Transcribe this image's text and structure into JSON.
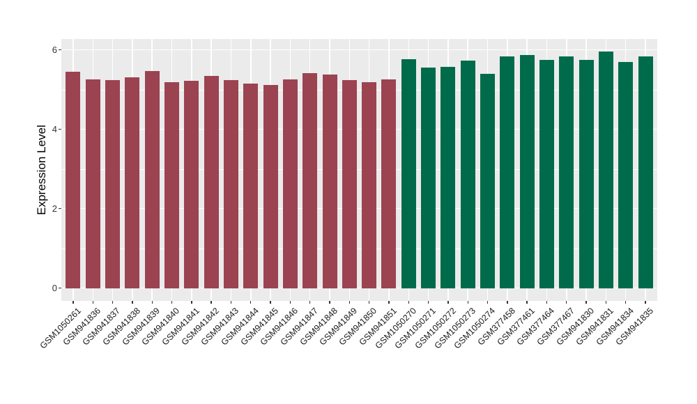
{
  "chart_data": {
    "type": "bar",
    "title": "",
    "xlabel": "",
    "ylabel": "Expression Level",
    "ylim": [
      0,
      6.3
    ],
    "yticks": [
      0,
      2,
      4,
      6
    ],
    "yticks_minor": [
      1,
      3,
      5
    ],
    "grid": true,
    "legend_position": "none",
    "panel_background": "#EBEBEB",
    "gridline_color": "#FFFFFF",
    "group_colors": {
      "maroon": "#9B4351",
      "green": "#006B4A"
    },
    "categories": [
      "GSM1050261",
      "GSM941836",
      "GSM941837",
      "GSM941838",
      "GSM941839",
      "GSM941840",
      "GSM941841",
      "GSM941842",
      "GSM941843",
      "GSM941844",
      "GSM941845",
      "GSM941846",
      "GSM941847",
      "GSM941848",
      "GSM941849",
      "GSM941850",
      "GSM941851",
      "GSM1050270",
      "GSM1050271",
      "GSM1050272",
      "GSM1050273",
      "GSM1050274",
      "GSM377458",
      "GSM377461",
      "GSM377464",
      "GSM377467",
      "GSM941830",
      "GSM941831",
      "GSM941834",
      "GSM941835"
    ],
    "values": [
      5.45,
      5.26,
      5.23,
      5.31,
      5.46,
      5.19,
      5.22,
      5.34,
      5.24,
      5.15,
      5.11,
      5.26,
      5.41,
      5.38,
      5.24,
      5.18,
      5.25,
      5.76,
      5.55,
      5.57,
      5.73,
      5.39,
      5.83,
      5.87,
      5.74,
      5.84,
      5.74,
      5.96,
      5.69,
      5.83
    ],
    "bar_color_keys": [
      "maroon",
      "maroon",
      "maroon",
      "maroon",
      "maroon",
      "maroon",
      "maroon",
      "maroon",
      "maroon",
      "maroon",
      "maroon",
      "maroon",
      "maroon",
      "maroon",
      "maroon",
      "maroon",
      "maroon",
      "green",
      "green",
      "green",
      "green",
      "green",
      "green",
      "green",
      "green",
      "green",
      "green",
      "green",
      "green",
      "green"
    ]
  }
}
